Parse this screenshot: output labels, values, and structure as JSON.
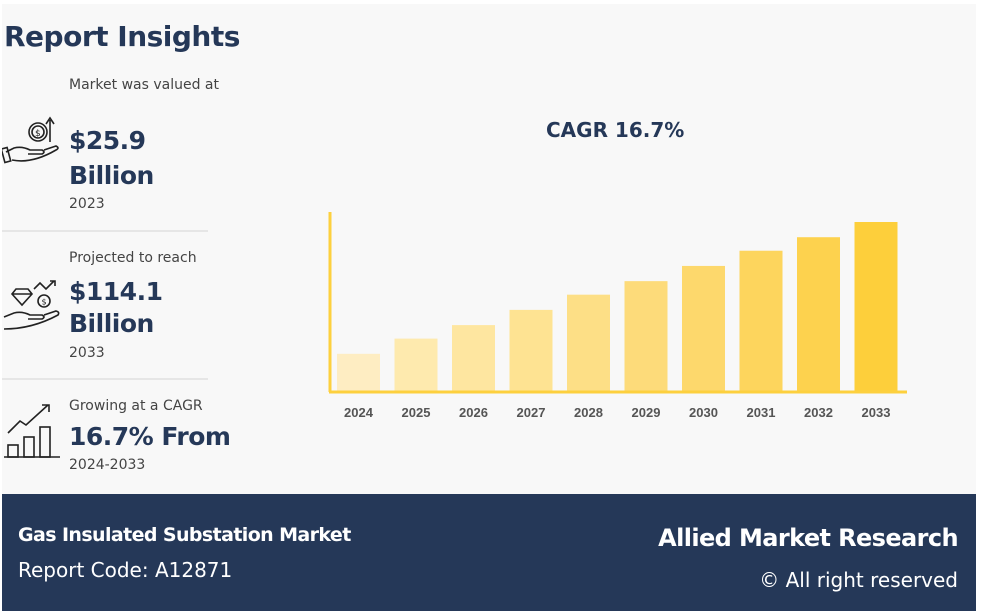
{
  "header": {
    "title": "Report Insights"
  },
  "stats": [
    {
      "label": "Market was valued at",
      "value": "$25.9 Billion",
      "value_line1": "$25.9",
      "value_line2": "Billion",
      "year": "2023",
      "icon": "money-hand-growth-icon"
    },
    {
      "label": "Projected to reach",
      "value": "$114.1 Billion",
      "value_line1": "$114.1",
      "value_line2": "Billion",
      "year": "2033",
      "icon": "diamond-dollar-hand-icon"
    },
    {
      "label": "Growing at a CAGR",
      "value": "16.7% From",
      "year": "2024-2033",
      "icon": "bar-chart-growth-icon"
    }
  ],
  "chart_data": {
    "type": "bar",
    "title": "CAGR 16.7%",
    "categories": [
      "2024",
      "2025",
      "2026",
      "2027",
      "2028",
      "2029",
      "2030",
      "2031",
      "2032",
      "2033"
    ],
    "values": [
      0.22,
      0.31,
      0.39,
      0.48,
      0.57,
      0.65,
      0.74,
      0.83,
      0.91,
      1.0
    ],
    "value_note": "relative bar heights (no values printed)",
    "colors": [
      "#feedc2",
      "#feeaae",
      "#fee6a0",
      "#fee392",
      "#fddf86",
      "#fddb7a",
      "#fdd86c",
      "#fdd55d",
      "#fdd24e",
      "#fdcf3b"
    ],
    "axis_color": "#fdd03e",
    "grid": false,
    "xlabel": "",
    "ylabel": ""
  },
  "footer": {
    "report_name": "Gas Insulated Substation Market",
    "report_code": "Report Code: A12871",
    "brand": "Allied Market Research",
    "rights": "© All right reserved"
  },
  "colors": {
    "navy": "#253858",
    "panel": "#f8f8f8"
  }
}
